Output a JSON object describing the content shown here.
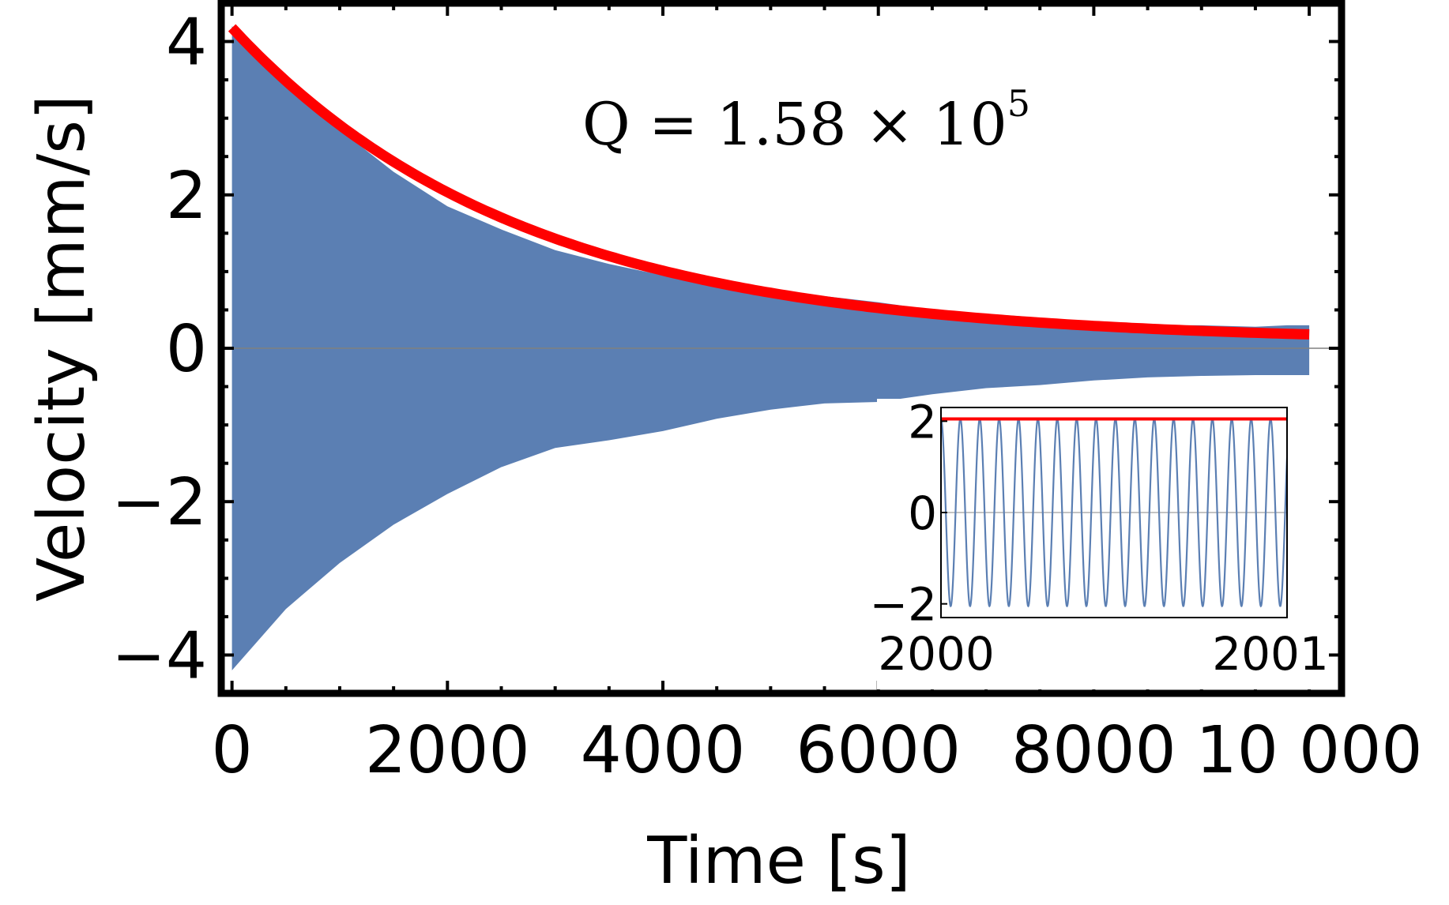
{
  "chart_data": [
    {
      "type": "area",
      "xlabel": "Time [s]",
      "ylabel": "Velocity [mm/s]",
      "xlim": [
        -100,
        10300
      ],
      "ylim": [
        -4.5,
        4.5
      ],
      "x_ticks": [
        0,
        2000,
        4000,
        6000,
        8000,
        10000
      ],
      "x_tick_labels": [
        "0",
        "2000",
        "4000",
        "6000",
        "8000",
        "10 000"
      ],
      "y_ticks": [
        -4,
        -2,
        0,
        2,
        4
      ],
      "y_tick_labels": [
        "−4",
        "−2",
        "0",
        "2",
        "4"
      ],
      "annotation": {
        "base": "Q = 1.58 × 10",
        "exponent": "5"
      },
      "grid": false,
      "series": [
        {
          "color": "#5b7fb3",
          "kind": "oscillation-envelope",
          "x": [
            0,
            500,
            1000,
            1500,
            2000,
            2500,
            3000,
            3500,
            4000,
            4500,
            5000,
            5500,
            6000,
            6500,
            7000,
            7500,
            8000,
            8500,
            9000,
            9500,
            9800,
            10000
          ],
          "upper": [
            4.2,
            3.5,
            2.85,
            2.3,
            1.85,
            1.55,
            1.28,
            1.1,
            0.95,
            0.85,
            0.78,
            0.68,
            0.6,
            0.5,
            0.45,
            0.4,
            0.35,
            0.3,
            0.3,
            0.28,
            0.3,
            0.3
          ],
          "lower": [
            -4.2,
            -3.4,
            -2.8,
            -2.3,
            -1.9,
            -1.55,
            -1.3,
            -1.2,
            -1.08,
            -0.92,
            -0.8,
            -0.72,
            -0.7,
            -0.6,
            -0.52,
            -0.48,
            -0.42,
            -0.38,
            -0.36,
            -0.35,
            -0.35,
            -0.35
          ]
        },
        {
          "color": "#ff0000",
          "kind": "exponential-fit",
          "A": 4.1,
          "tau": 2700,
          "offset": 0.08,
          "x_range": [
            0,
            10000
          ]
        }
      ]
    },
    {
      "type": "line",
      "role": "inset",
      "xlim": [
        2000,
        2001.05
      ],
      "ylim": [
        -2.3,
        2.3
      ],
      "x_ticks": [
        2000,
        2001
      ],
      "x_tick_labels": [
        "2000",
        "2001"
      ],
      "y_ticks": [
        -2,
        0,
        2
      ],
      "y_tick_labels": [
        "−2",
        "0",
        "2"
      ],
      "series": [
        {
          "color": "#5b7fb3",
          "kind": "sine",
          "amplitude": 2.05,
          "frequency_hz": 17,
          "phase": 1.5708
        },
        {
          "color": "#ff0000",
          "kind": "constant",
          "value": 2.05
        }
      ]
    }
  ]
}
